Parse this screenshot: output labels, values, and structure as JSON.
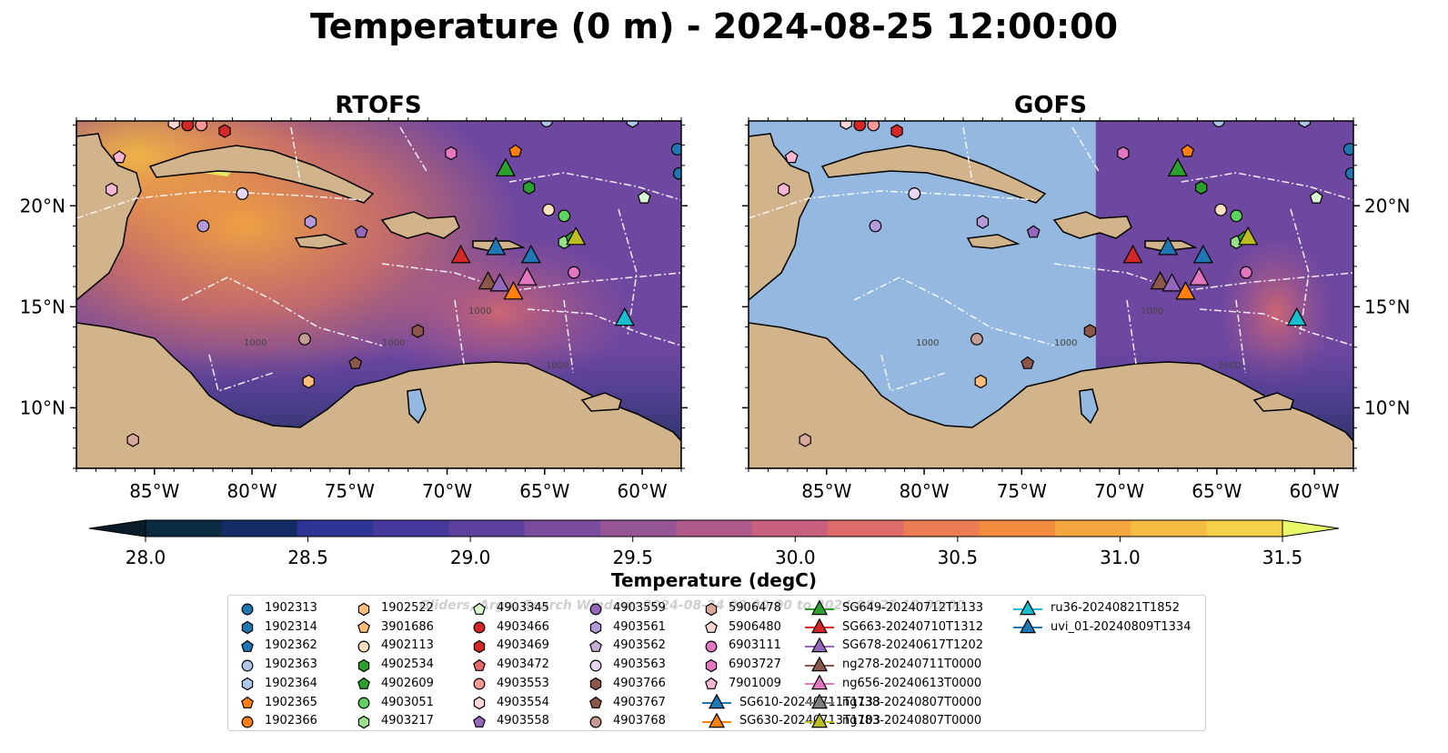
{
  "figure": {
    "title": "Temperature (0 m) - 2024-08-25 12:00:00",
    "watermark": "Gliders, Argo, Search Window: 2024-08-24 00:00:00 to 2024-08-25 12:00:00",
    "colors": {
      "land": "#d2b48c",
      "nodata": "#94b8e0",
      "contour": "#ffffff",
      "line": "#000000"
    }
  },
  "chart_data": [
    {
      "type": "heatmap",
      "title": "RTOFS",
      "x_ticks": [
        "85°W",
        "80°W",
        "75°W",
        "70°W",
        "65°W",
        "60°W"
      ],
      "x_tick_values": [
        -85,
        -80,
        -75,
        -70,
        -65,
        -60
      ],
      "y_ticks": [
        "20°N",
        "15°N",
        "10°N"
      ],
      "y_tick_values": [
        20,
        15,
        10
      ],
      "xlim": [
        -89,
        -58
      ],
      "ylim": [
        7,
        24.2
      ],
      "contour_labels": [
        "1000",
        "1000",
        "1000",
        "1000"
      ]
    },
    {
      "type": "heatmap",
      "title": "GOFS",
      "x_ticks": [
        "85°W",
        "80°W",
        "75°W",
        "70°W",
        "65°W",
        "60°W"
      ],
      "x_tick_values": [
        -85,
        -80,
        -75,
        -70,
        -65,
        -60
      ],
      "y_ticks": [
        "20°N",
        "15°N",
        "10°N"
      ],
      "y_tick_values": [
        20,
        15,
        10
      ],
      "xlim": [
        -89,
        -58
      ],
      "ylim": [
        7,
        24.2
      ],
      "coverage_note": "model coverage east of ~71°W only",
      "coverage_west_lon": -71.2,
      "contour_labels": [
        "1000",
        "1000",
        "1000",
        "1000"
      ]
    }
  ],
  "colorbar": {
    "label": "Temperature (degC)",
    "range": [
      28.0,
      31.5
    ],
    "step": 0.25,
    "ticks": [
      "28.0",
      "28.5",
      "29.0",
      "29.5",
      "30.0",
      "30.5",
      "31.0",
      "31.5"
    ],
    "colors": [
      "#0b2b40",
      "#142c66",
      "#2d3495",
      "#45399b",
      "#5e3f9e",
      "#7b4c9d",
      "#955597",
      "#b05b8c",
      "#c8607e",
      "#dd6b6a",
      "#ec7c53",
      "#f28d3f",
      "#f5a63e",
      "#f5bc43",
      "#f5d049"
    ],
    "under_color": "#091c28",
    "over_color": "#e9f86a"
  },
  "legend": [
    {
      "label": "1902313",
      "shape": "circle",
      "color": "#1f77b4"
    },
    {
      "label": "1902314",
      "shape": "hexagon",
      "color": "#1f77b4"
    },
    {
      "label": "1902362",
      "shape": "pentagon",
      "color": "#1f77b4"
    },
    {
      "label": "1902363",
      "shape": "circle",
      "color": "#aec7e8"
    },
    {
      "label": "1902364",
      "shape": "hexagon",
      "color": "#aec7e8"
    },
    {
      "label": "1902365",
      "shape": "pentagon",
      "color": "#ff7f0e"
    },
    {
      "label": "1902366",
      "shape": "circle",
      "color": "#ff7f0e"
    },
    {
      "label": "1902522",
      "shape": "hexagon",
      "color": "#ffbb78"
    },
    {
      "label": "3901686",
      "shape": "pentagon",
      "color": "#ffbb78"
    },
    {
      "label": "4902113",
      "shape": "circle",
      "color": "#ffe0bf"
    },
    {
      "label": "4902534",
      "shape": "hexagon",
      "color": "#2ca02c"
    },
    {
      "label": "4902609",
      "shape": "pentagon",
      "color": "#2ca02c"
    },
    {
      "label": "4903051",
      "shape": "circle",
      "color": "#5fd35f"
    },
    {
      "label": "4903217",
      "shape": "hexagon",
      "color": "#98df8a"
    },
    {
      "label": "4903345",
      "shape": "pentagon",
      "color": "#d9f7d2"
    },
    {
      "label": "4903466",
      "shape": "circle",
      "color": "#d62728"
    },
    {
      "label": "4903469",
      "shape": "hexagon",
      "color": "#d62728"
    },
    {
      "label": "4903472",
      "shape": "pentagon",
      "color": "#e9686a"
    },
    {
      "label": "4903553",
      "shape": "circle",
      "color": "#ff9896"
    },
    {
      "label": "4903554",
      "shape": "hexagon",
      "color": "#ffd7d6"
    },
    {
      "label": "4903558",
      "shape": "pentagon",
      "color": "#9467bd"
    },
    {
      "label": "4903559",
      "shape": "circle",
      "color": "#9467bd"
    },
    {
      "label": "4903561",
      "shape": "hexagon",
      "color": "#b39bd9"
    },
    {
      "label": "4903562",
      "shape": "pentagon",
      "color": "#c5b0d5"
    },
    {
      "label": "4903563",
      "shape": "circle",
      "color": "#e6d7f2"
    },
    {
      "label": "4903766",
      "shape": "hexagon",
      "color": "#8c564b"
    },
    {
      "label": "4903767",
      "shape": "pentagon",
      "color": "#8c564b"
    },
    {
      "label": "4903768",
      "shape": "circle",
      "color": "#c49c94"
    },
    {
      "label": "5906478",
      "shape": "hexagon",
      "color": "#d9a89c"
    },
    {
      "label": "5906480",
      "shape": "pentagon",
      "color": "#f7d5cc"
    },
    {
      "label": "6903111",
      "shape": "circle",
      "color": "#e377c2"
    },
    {
      "label": "6903727",
      "shape": "hexagon",
      "color": "#e377c2"
    },
    {
      "label": "7901009",
      "shape": "pentagon",
      "color": "#f7b6d2"
    },
    {
      "label": "SG610-20240711T1133",
      "shape": "triangle",
      "color": "#1f77b4"
    },
    {
      "label": "SG630-20240713T1103",
      "shape": "triangle",
      "color": "#ff7f0e"
    },
    {
      "label": "SG649-20240712T1133",
      "shape": "triangle",
      "color": "#2ca02c"
    },
    {
      "label": "SG663-20240710T1312",
      "shape": "triangle",
      "color": "#d62728"
    },
    {
      "label": "SG678-20240617T1202",
      "shape": "triangle",
      "color": "#9467bd"
    },
    {
      "label": "ng278-20240711T0000",
      "shape": "triangle",
      "color": "#8c564b"
    },
    {
      "label": "ng656-20240613T0000",
      "shape": "triangle",
      "color": "#e377c2"
    },
    {
      "label": "ng738-20240807T0000",
      "shape": "triangle",
      "color": "#7f7f7f"
    },
    {
      "label": "ng783-20240807T0000",
      "shape": "triangle",
      "color": "#bcbd22"
    },
    {
      "label": "ru36-20240821T1852",
      "shape": "triangle",
      "color": "#17becf"
    },
    {
      "label": "uvi_01-20240809T1334",
      "shape": "triangle",
      "color": "#1f77b4"
    }
  ],
  "observations": [
    {
      "lon": -83.3,
      "lat": 24.0,
      "shape": "circle",
      "color": "#d62728"
    },
    {
      "lon": -82.6,
      "lat": 24.0,
      "shape": "circle",
      "color": "#ff9896"
    },
    {
      "lon": -84.0,
      "lat": 24.1,
      "shape": "hexagon",
      "color": "#ffd7d6"
    },
    {
      "lon": -81.4,
      "lat": 23.7,
      "shape": "hexagon",
      "color": "#d62728"
    },
    {
      "lon": -86.8,
      "lat": 22.4,
      "shape": "pentagon",
      "color": "#f7b6d2"
    },
    {
      "lon": -87.2,
      "lat": 20.8,
      "shape": "hexagon",
      "color": "#f7b6d2"
    },
    {
      "lon": -80.5,
      "lat": 20.6,
      "shape": "circle",
      "color": "#e6d7f2"
    },
    {
      "lon": -82.5,
      "lat": 19.0,
      "shape": "circle",
      "color": "#b39bd9"
    },
    {
      "lon": -77.0,
      "lat": 19.2,
      "shape": "hexagon",
      "color": "#b39bd9"
    },
    {
      "lon": -74.4,
      "lat": 18.7,
      "shape": "pentagon",
      "color": "#9467bd"
    },
    {
      "lon": -69.8,
      "lat": 22.6,
      "shape": "hexagon",
      "color": "#e377c2"
    },
    {
      "lon": -66.5,
      "lat": 22.7,
      "shape": "pentagon",
      "color": "#ff7f0e"
    },
    {
      "lon": -64.9,
      "lat": 24.2,
      "shape": "circle",
      "color": "#aec7e8"
    },
    {
      "lon": -60.5,
      "lat": 24.2,
      "shape": "hexagon",
      "color": "#aec7e8"
    },
    {
      "lon": -58.2,
      "lat": 22.8,
      "shape": "circle",
      "color": "#1f77b4"
    },
    {
      "lon": -58.1,
      "lat": 21.6,
      "shape": "circle",
      "color": "#1f77b4"
    },
    {
      "lon": -65.8,
      "lat": 20.9,
      "shape": "hexagon",
      "color": "#2ca02c"
    },
    {
      "lon": -59.9,
      "lat": 20.4,
      "shape": "pentagon",
      "color": "#d9f7d2"
    },
    {
      "lon": -64.8,
      "lat": 19.8,
      "shape": "circle",
      "color": "#ffe0bf"
    },
    {
      "lon": -64.0,
      "lat": 19.5,
      "shape": "circle",
      "color": "#5fd35f"
    },
    {
      "lon": -64.0,
      "lat": 18.2,
      "shape": "hexagon",
      "color": "#98df8a"
    },
    {
      "lon": -63.6,
      "lat": 18.4,
      "shape": "pentagon",
      "color": "#2ca02c"
    },
    {
      "lon": -63.5,
      "lat": 16.7,
      "shape": "circle",
      "color": "#e377c2"
    },
    {
      "lon": -71.5,
      "lat": 13.8,
      "shape": "hexagon",
      "color": "#8c564b"
    },
    {
      "lon": -77.3,
      "lat": 13.4,
      "shape": "circle",
      "color": "#c49c94"
    },
    {
      "lon": -74.7,
      "lat": 12.2,
      "shape": "pentagon",
      "color": "#8c564b"
    },
    {
      "lon": -77.1,
      "lat": 11.3,
      "shape": "hexagon",
      "color": "#ffbb78"
    },
    {
      "lon": -86.1,
      "lat": 8.4,
      "shape": "hexagon",
      "color": "#d9a89c"
    },
    {
      "lon": -67.0,
      "lat": 21.8,
      "shape": "triangle",
      "color": "#2ca02c"
    },
    {
      "lon": -69.3,
      "lat": 17.5,
      "shape": "triangle",
      "color": "#d62728"
    },
    {
      "lon": -67.5,
      "lat": 17.9,
      "shape": "triangle",
      "color": "#1f77b4"
    },
    {
      "lon": -65.7,
      "lat": 17.5,
      "shape": "triangle",
      "color": "#1f77b4"
    },
    {
      "lon": -63.4,
      "lat": 18.4,
      "shape": "triangle",
      "color": "#bcbd22"
    },
    {
      "lon": -67.9,
      "lat": 16.2,
      "shape": "triangle",
      "color": "#8c564b"
    },
    {
      "lon": -67.3,
      "lat": 16.1,
      "shape": "triangle",
      "color": "#9467bd"
    },
    {
      "lon": -66.6,
      "lat": 15.7,
      "shape": "triangle",
      "color": "#ff7f0e"
    },
    {
      "lon": -65.9,
      "lat": 16.4,
      "shape": "triangle",
      "color": "#e377c2"
    },
    {
      "lon": -60.9,
      "lat": 14.4,
      "shape": "triangle",
      "color": "#17becf"
    }
  ]
}
